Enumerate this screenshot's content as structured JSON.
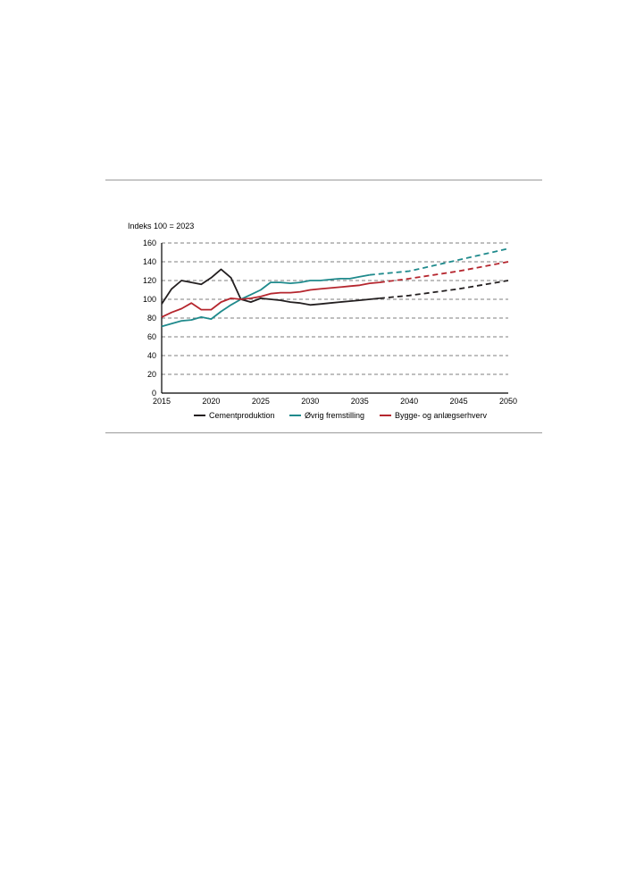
{
  "chart_data": {
    "type": "line",
    "title": "",
    "ylabel": "Indeks 100 = 2023",
    "xlabel": "",
    "xlim": [
      2015,
      2050
    ],
    "ylim": [
      0,
      160
    ],
    "x_ticks": [
      2015,
      2020,
      2025,
      2030,
      2035,
      2040,
      2045,
      2050
    ],
    "y_ticks": [
      0,
      20,
      40,
      60,
      80,
      100,
      120,
      140,
      160
    ],
    "grid": "horizontal dashed",
    "legend_position": "bottom",
    "series": [
      {
        "name": "Cementproduktion",
        "color": "#231f20",
        "historical": [
          [
            2015,
            95
          ],
          [
            2016,
            111
          ],
          [
            2017,
            120
          ],
          [
            2018,
            118
          ],
          [
            2019,
            116
          ],
          [
            2020,
            123
          ],
          [
            2021,
            132
          ],
          [
            2022,
            123
          ],
          [
            2023,
            100
          ],
          [
            2024,
            97
          ],
          [
            2025,
            101
          ],
          [
            2026,
            100
          ],
          [
            2027,
            99
          ],
          [
            2028,
            97
          ],
          [
            2029,
            96
          ],
          [
            2030,
            94
          ],
          [
            2031,
            95
          ],
          [
            2032,
            96
          ],
          [
            2033,
            97
          ],
          [
            2034,
            98
          ],
          [
            2035,
            99
          ],
          [
            2036,
            100
          ],
          [
            2037,
            101
          ]
        ],
        "projection": [
          [
            2037,
            101
          ],
          [
            2040,
            104
          ],
          [
            2045,
            111
          ],
          [
            2050,
            120
          ]
        ]
      },
      {
        "name": "Øvrig fremstilling",
        "color": "#1f8a8c",
        "historical": [
          [
            2015,
            71
          ],
          [
            2016,
            74
          ],
          [
            2017,
            77
          ],
          [
            2018,
            78
          ],
          [
            2019,
            81
          ],
          [
            2020,
            79
          ],
          [
            2021,
            87
          ],
          [
            2022,
            94
          ],
          [
            2023,
            100
          ],
          [
            2024,
            105
          ],
          [
            2025,
            110
          ],
          [
            2026,
            118
          ],
          [
            2027,
            118
          ],
          [
            2028,
            117
          ],
          [
            2029,
            118
          ],
          [
            2030,
            120
          ],
          [
            2031,
            120
          ],
          [
            2032,
            121
          ],
          [
            2033,
            122
          ],
          [
            2034,
            122
          ],
          [
            2035,
            124
          ],
          [
            2036,
            126
          ]
        ],
        "projection": [
          [
            2036,
            126
          ],
          [
            2040,
            130
          ],
          [
            2045,
            142
          ],
          [
            2050,
            154
          ]
        ]
      },
      {
        "name": "Bygge- og anlægserhverv",
        "color": "#b5262e",
        "historical": [
          [
            2015,
            81
          ],
          [
            2016,
            86
          ],
          [
            2017,
            90
          ],
          [
            2018,
            96
          ],
          [
            2019,
            89
          ],
          [
            2020,
            89
          ],
          [
            2021,
            97
          ],
          [
            2022,
            101
          ],
          [
            2023,
            100
          ],
          [
            2024,
            101
          ],
          [
            2025,
            103
          ],
          [
            2026,
            106
          ],
          [
            2027,
            107
          ],
          [
            2028,
            107
          ],
          [
            2029,
            108
          ],
          [
            2030,
            110
          ],
          [
            2031,
            111
          ],
          [
            2032,
            112
          ],
          [
            2033,
            113
          ],
          [
            2034,
            114
          ],
          [
            2035,
            115
          ],
          [
            2036,
            117
          ],
          [
            2037,
            118
          ]
        ],
        "projection": [
          [
            2037,
            118
          ],
          [
            2040,
            122
          ],
          [
            2045,
            130
          ],
          [
            2050,
            140
          ]
        ]
      }
    ]
  }
}
